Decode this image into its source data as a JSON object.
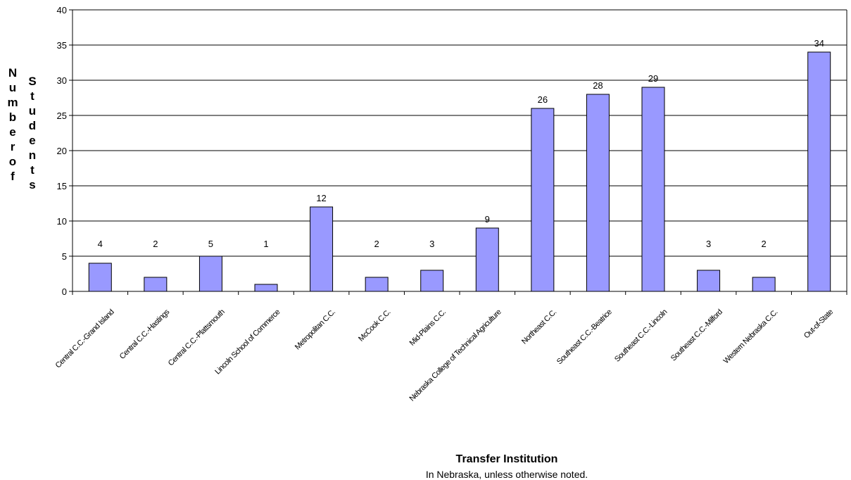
{
  "chart_data": {
    "type": "bar",
    "categories": [
      "Central C.C.-Grand Island",
      "Central C.C.-Hastings",
      "Central C.C.-Plattsmouth",
      "Lincoln School of Commerce",
      "Metropolitan C.C.",
      "McCook C.C.",
      "Mid-Plains C.C.",
      "Nebraska College of Technical Agriculture",
      "Northeast C.C.",
      "Southeast C.C.-Beatrice",
      "Southeast C.C.-Lincoln",
      "Southeast C.C.-Milford",
      "Western Nebraska C.C.",
      "Out-of-State"
    ],
    "values": [
      4,
      2,
      5,
      1,
      12,
      2,
      3,
      9,
      26,
      28,
      29,
      3,
      2,
      34
    ],
    "data_labels": [
      "4",
      "2",
      "5",
      "1",
      "12",
      "2",
      "3",
      "9",
      "26",
      "28",
      "29",
      "3",
      "2",
      "34"
    ],
    "ylabel_word1": "Number of",
    "ylabel_word2": "Students",
    "xlabel": "Transfer Institution",
    "xlabel_note": "In Nebraska, unless otherwise noted.",
    "ylim": [
      0,
      40
    ],
    "yticks": [
      0,
      5,
      10,
      15,
      20,
      25,
      30,
      35,
      40
    ],
    "grid": true,
    "bar_color": "#9999ff",
    "bar_edge": "#000000"
  }
}
